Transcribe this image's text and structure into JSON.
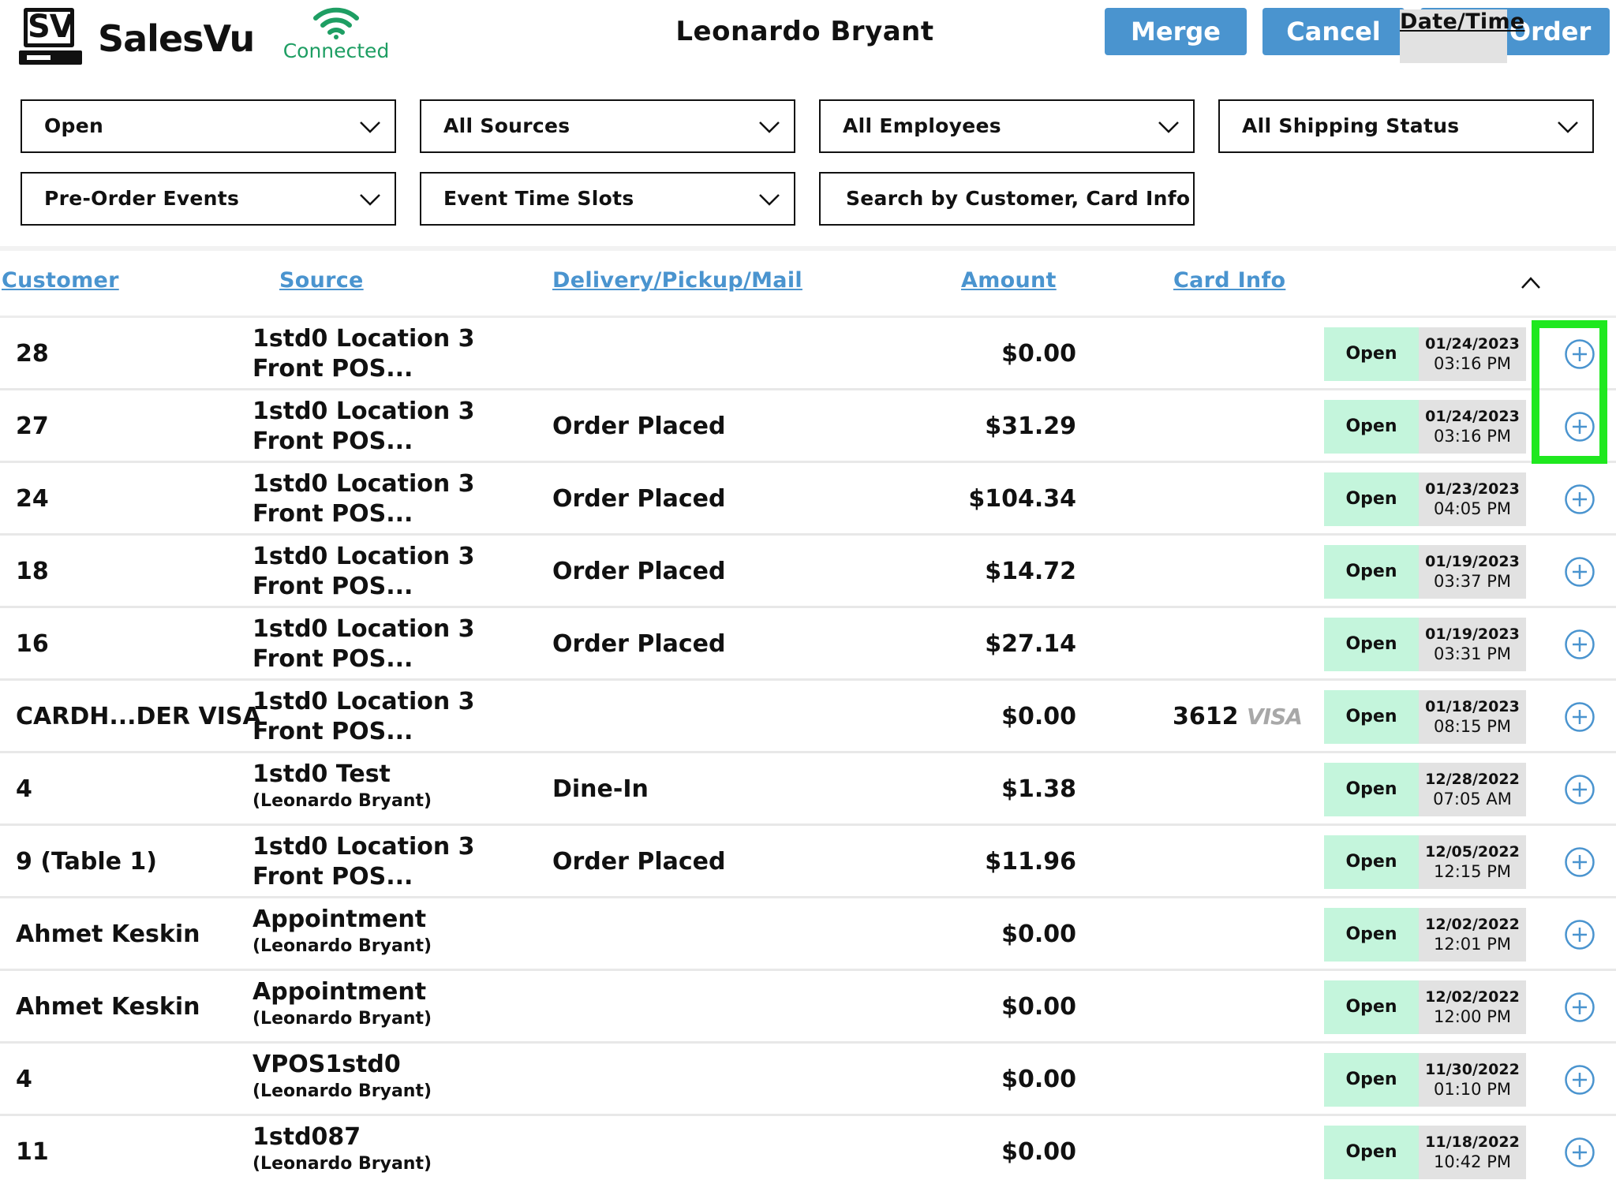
{
  "header": {
    "brand": "SalesVu",
    "logo_text": "SV",
    "connection_status": "Connected",
    "user_name": "Leonardo Bryant",
    "buttons": {
      "merge": "Merge",
      "cancel": "Cancel",
      "new_order": "New Order"
    },
    "accent_color": "#4a94cf",
    "connected_color": "#1e9e63"
  },
  "filters": {
    "status": "Open",
    "sources": "All Sources",
    "employees": "All Employees",
    "shipping": "All Shipping Status",
    "pre_order_events": "Pre-Order Events",
    "event_time_slots": "Event Time Slots",
    "search_placeholder": "Search by Customer, Card Info"
  },
  "columns": {
    "customer": "Customer",
    "source": "Source",
    "delivery": "Delivery/Pickup/Mail",
    "amount": "Amount",
    "card_info": "Card Info",
    "date_time": "Date/Time",
    "sort": "ascending"
  },
  "orders": [
    {
      "customer": "28",
      "source1": "1std0 Location 3",
      "source2": "Front POS...",
      "source2_small": false,
      "delivery": "",
      "amount": "$0.00",
      "card_last4": "",
      "card_brand": "",
      "status": "Open",
      "date": "01/24/2023",
      "time": "03:16 PM"
    },
    {
      "customer": "27",
      "source1": "1std0 Location 3",
      "source2": "Front POS...",
      "source2_small": false,
      "delivery": "Order Placed",
      "amount": "$31.29",
      "card_last4": "",
      "card_brand": "",
      "status": "Open",
      "date": "01/24/2023",
      "time": "03:16 PM"
    },
    {
      "customer": "24",
      "source1": "1std0 Location 3",
      "source2": "Front POS...",
      "source2_small": false,
      "delivery": "Order Placed",
      "amount": "$104.34",
      "card_last4": "",
      "card_brand": "",
      "status": "Open",
      "date": "01/23/2023",
      "time": "04:05 PM"
    },
    {
      "customer": "18",
      "source1": "1std0 Location 3",
      "source2": "Front POS...",
      "source2_small": false,
      "delivery": "Order Placed",
      "amount": "$14.72",
      "card_last4": "",
      "card_brand": "",
      "status": "Open",
      "date": "01/19/2023",
      "time": "03:37 PM"
    },
    {
      "customer": "16",
      "source1": "1std0 Location 3",
      "source2": "Front POS...",
      "source2_small": false,
      "delivery": "Order Placed",
      "amount": "$27.14",
      "card_last4": "",
      "card_brand": "",
      "status": "Open",
      "date": "01/19/2023",
      "time": "03:31 PM"
    },
    {
      "customer": "CARDH...DER VISA",
      "source1": "1std0 Location 3",
      "source2": "Front POS...",
      "source2_small": false,
      "delivery": "",
      "amount": "$0.00",
      "card_last4": "3612",
      "card_brand": "VISA",
      "status": "Open",
      "date": "01/18/2023",
      "time": "08:15 PM"
    },
    {
      "customer": "4",
      "source1": "1std0 Test",
      "source2": "(Leonardo  Bryant)",
      "source2_small": true,
      "delivery": "Dine-In",
      "amount": "$1.38",
      "card_last4": "",
      "card_brand": "",
      "status": "Open",
      "date": "12/28/2022",
      "time": "07:05 AM"
    },
    {
      "customer": "9 (Table 1)",
      "source1": "1std0 Location 3",
      "source2": "Front POS...",
      "source2_small": false,
      "delivery": "Order Placed",
      "amount": "$11.96",
      "card_last4": "",
      "card_brand": "",
      "status": "Open",
      "date": "12/05/2022",
      "time": "12:15 PM"
    },
    {
      "customer": "Ahmet Keskin",
      "source1": "Appointment",
      "source2": "(Leonardo  Bryant)",
      "source2_small": true,
      "delivery": "",
      "amount": "$0.00",
      "card_last4": "",
      "card_brand": "",
      "status": "Open",
      "date": "12/02/2022",
      "time": "12:01 PM"
    },
    {
      "customer": "Ahmet Keskin",
      "source1": "Appointment",
      "source2": "(Leonardo  Bryant)",
      "source2_small": true,
      "delivery": "",
      "amount": "$0.00",
      "card_last4": "",
      "card_brand": "",
      "status": "Open",
      "date": "12/02/2022",
      "time": "12:00 PM"
    },
    {
      "customer": "4",
      "source1": "VPOS1std0",
      "source2": "(Leonardo  Bryant)",
      "source2_small": true,
      "delivery": "",
      "amount": "$0.00",
      "card_last4": "",
      "card_brand": "",
      "status": "Open",
      "date": "11/30/2022",
      "time": "01:10 PM"
    },
    {
      "customer": "11",
      "source1": "1std087",
      "source2": "(Leonardo  Bryant)",
      "source2_small": true,
      "delivery": "",
      "amount": "$0.00",
      "card_last4": "",
      "card_brand": "",
      "status": "Open",
      "date": "11/18/2022",
      "time": "10:42 PM"
    }
  ],
  "row_action_icon": "plus-circle-icon",
  "status_color": "#c4f5dc",
  "highlight_color": "#1fe81f"
}
